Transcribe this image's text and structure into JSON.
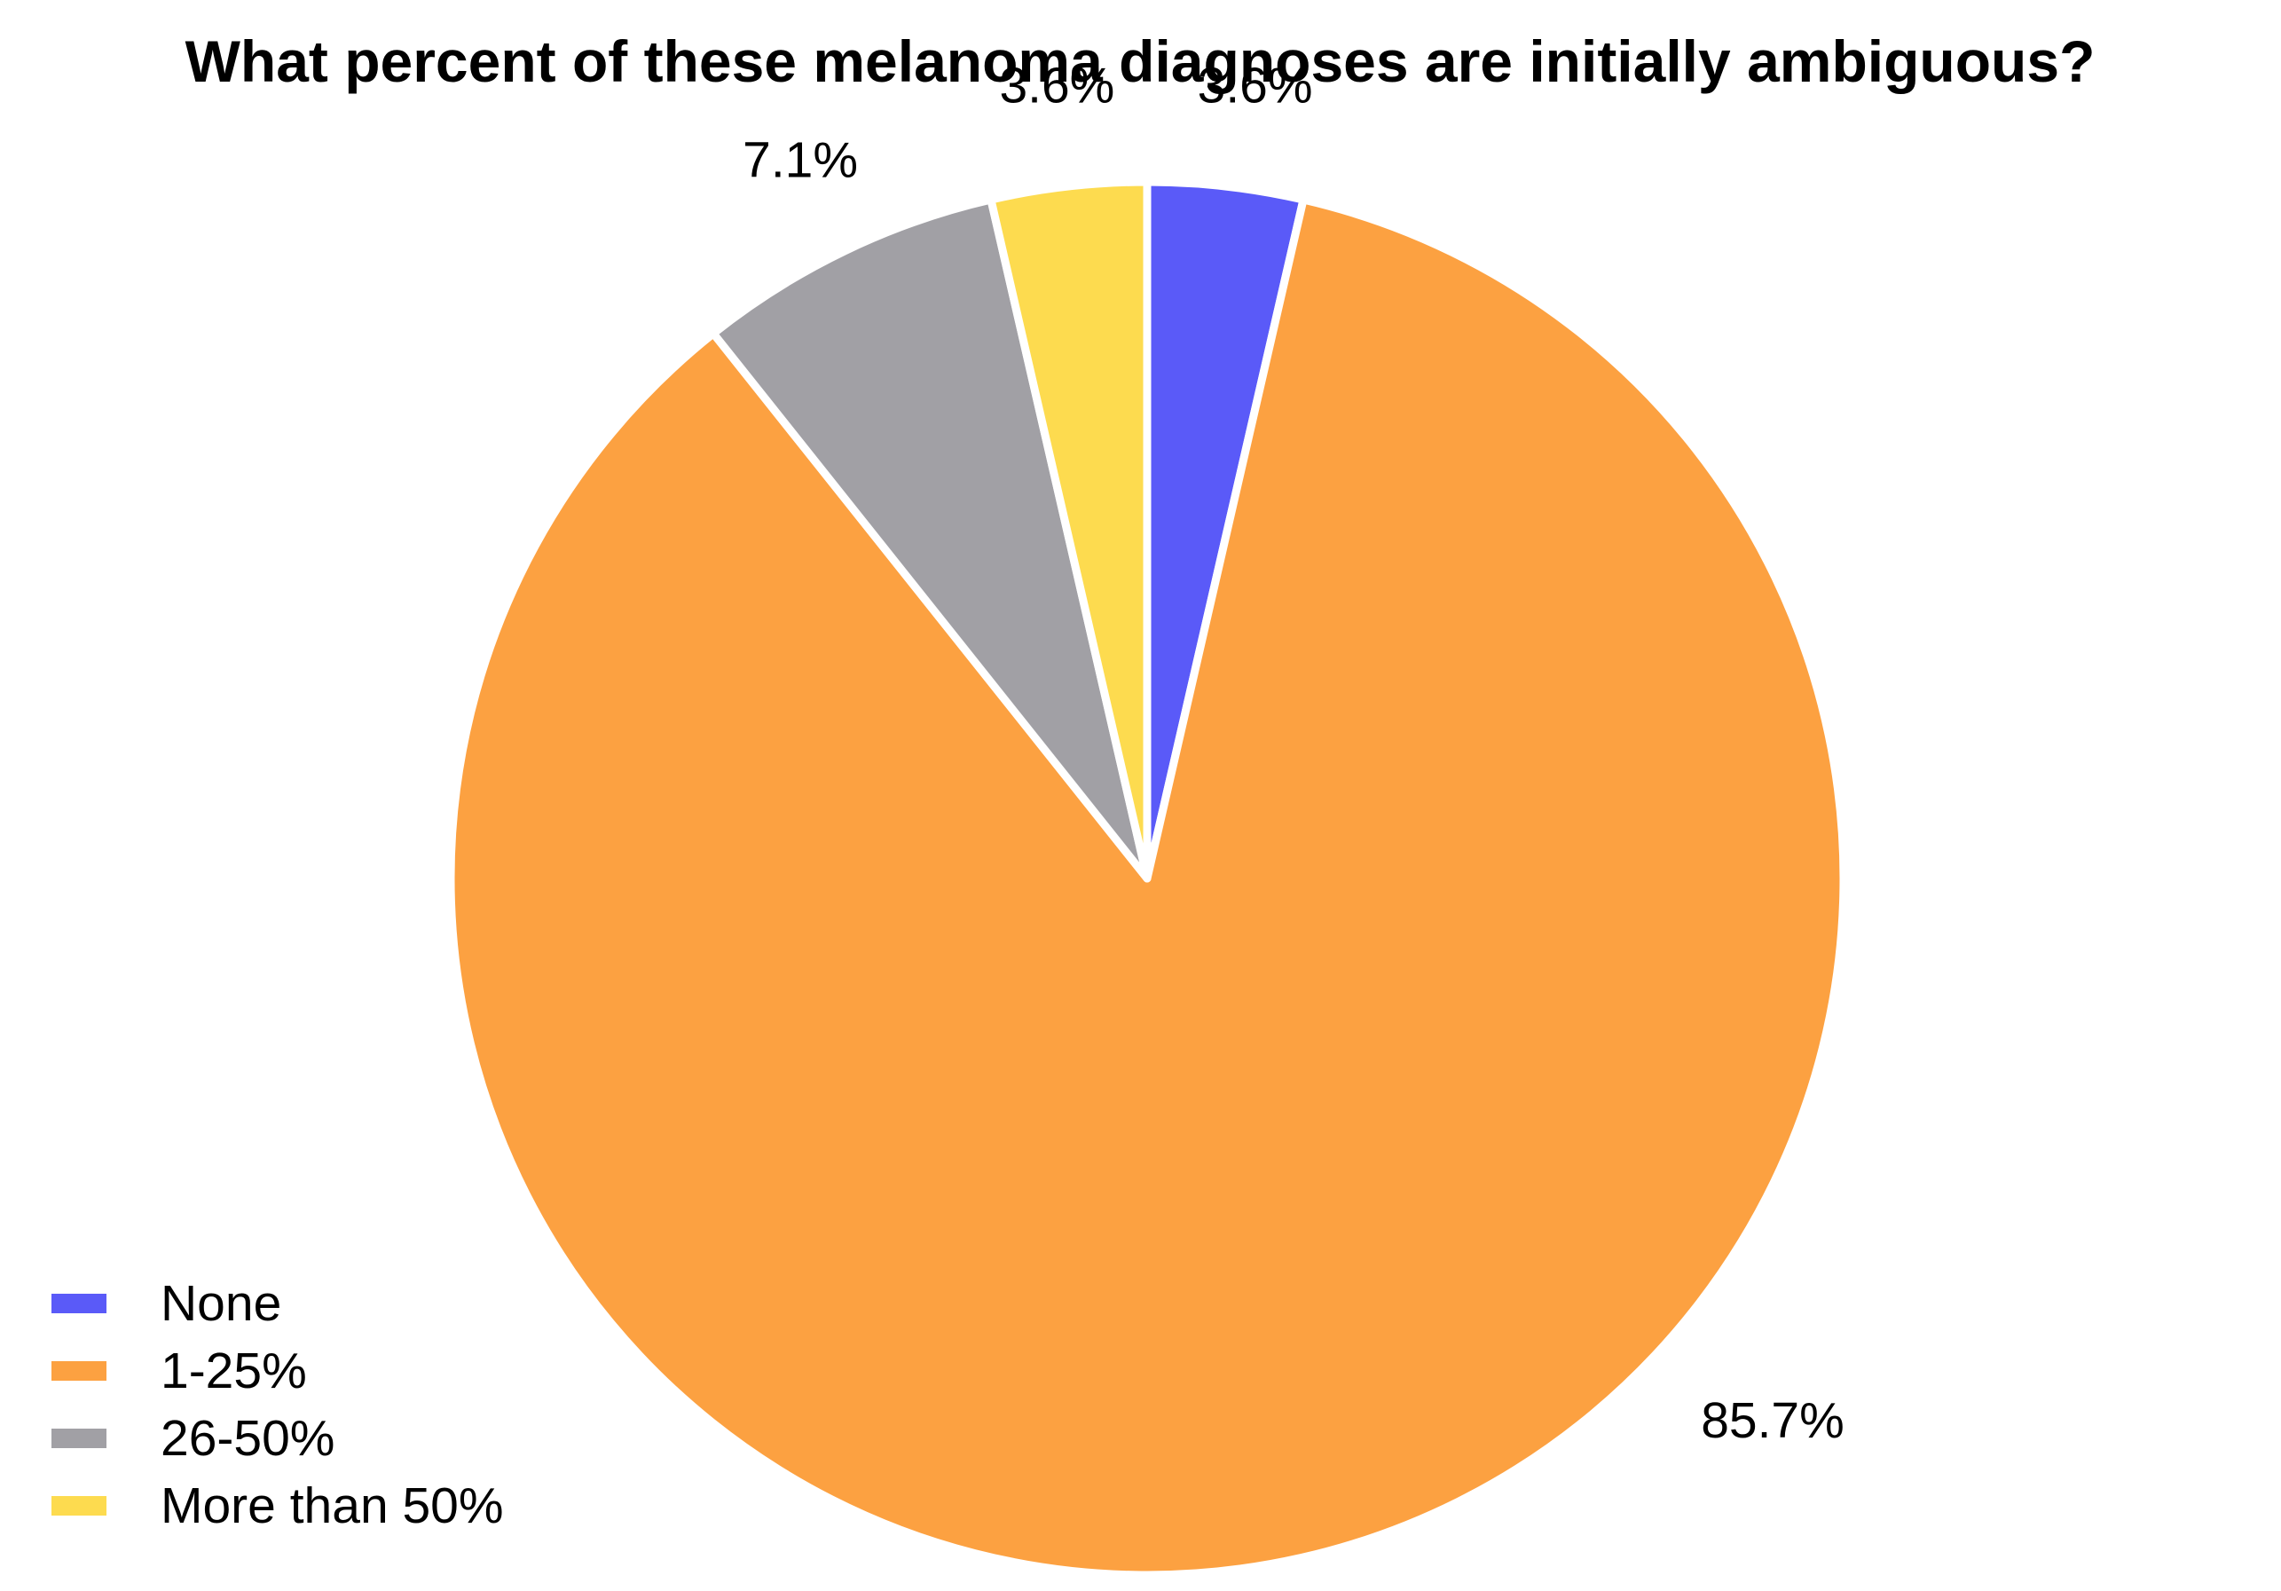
{
  "chart_data": {
    "type": "pie",
    "title": "What percent of these melanoma diagnoses are initially ambiguous?",
    "slices": [
      {
        "name": "None",
        "value": 3.6,
        "label": "3.6%",
        "color": "#5a5af8"
      },
      {
        "name": "1-25%",
        "value": 85.7,
        "label": "85.7%",
        "color": "#fca141"
      },
      {
        "name": "26-50%",
        "value": 7.1,
        "label": "7.1%",
        "color": "#a1a0a5"
      },
      {
        "name": "More than 50%",
        "value": 3.6,
        "label": "3.6%",
        "color": "#fddb4f"
      }
    ],
    "start_angle_deg": 0,
    "direction": "clockwise",
    "legend_position": "bottom-left",
    "background": "#ffffff",
    "slice_separator_color": "#ffffff"
  }
}
